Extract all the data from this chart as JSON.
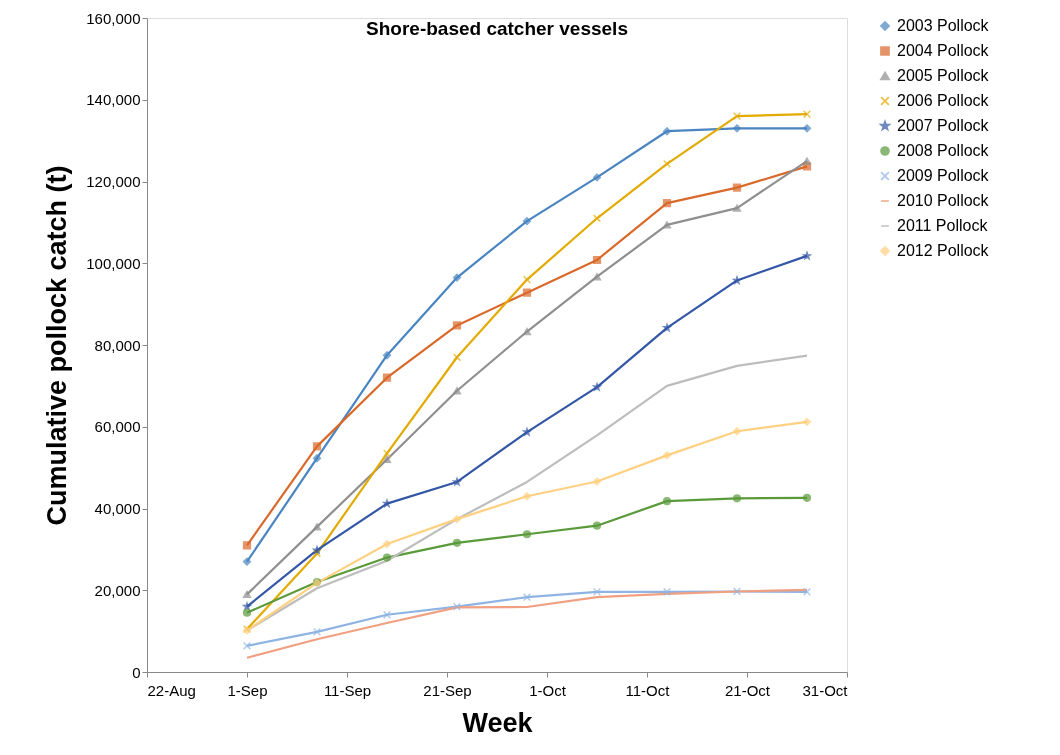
{
  "chart_data": {
    "type": "line",
    "title": "Shore-based catcher vessels",
    "xlabel": "Week",
    "ylabel": "Cumulative pollock catch (t)",
    "x": [
      "--09-01",
      "--09-08",
      "--09-15",
      "--09-22",
      "--09-29",
      "--10-06",
      "--10-13",
      "--10-20",
      "--10-27"
    ],
    "xlim": [
      "--08-22",
      "--10-31"
    ],
    "xticks": [
      {
        "value": "--08-22",
        "label": "22-Aug"
      },
      {
        "value": "--09-01",
        "label": "1-Sep"
      },
      {
        "value": "--09-11",
        "label": "11-Sep"
      },
      {
        "value": "--09-21",
        "label": "21-Sep"
      },
      {
        "value": "--10-01",
        "label": "1-Oct"
      },
      {
        "value": "--10-11",
        "label": "11-Oct"
      },
      {
        "value": "--10-21",
        "label": "21-Oct"
      },
      {
        "value": "--10-31",
        "label": "31-Oct"
      }
    ],
    "ylim": [
      0,
      160000
    ],
    "yticks": [
      {
        "value": 0,
        "label": "0"
      },
      {
        "value": 20000,
        "label": "20,000"
      },
      {
        "value": 40000,
        "label": "40,000"
      },
      {
        "value": 60000,
        "label": "60,000"
      },
      {
        "value": 80000,
        "label": "80,000"
      },
      {
        "value": 100000,
        "label": "100,000"
      },
      {
        "value": 120000,
        "label": "120,000"
      },
      {
        "value": 140000,
        "label": "140,000"
      },
      {
        "value": 160000,
        "label": "160,000"
      }
    ],
    "grid": false,
    "legend": "right",
    "series": [
      {
        "name": "2003 Pollock",
        "color": "#4a85c1",
        "marker": "diamond",
        "values": [
          27000,
          52300,
          77500,
          96500,
          110300,
          121000,
          132300,
          133000,
          133000
        ]
      },
      {
        "name": "2004 Pollock",
        "color": "#d9692a",
        "marker": "square",
        "values": [
          31000,
          55200,
          72000,
          84800,
          92800,
          100800,
          114700,
          118500,
          123700
        ]
      },
      {
        "name": "2005 Pollock",
        "color": "#8f8f8f",
        "marker": "triangle",
        "values": [
          19000,
          35500,
          52000,
          68800,
          83300,
          96700,
          109400,
          113500,
          125000
        ]
      },
      {
        "name": "2006 Pollock",
        "color": "#e3aa00",
        "marker": "cross",
        "values": [
          10500,
          29000,
          53500,
          77000,
          96000,
          111000,
          124300,
          136000,
          136500
        ]
      },
      {
        "name": "2007 Pollock",
        "color": "#3357a6",
        "marker": "star",
        "values": [
          16000,
          29800,
          41200,
          46500,
          58700,
          69700,
          84200,
          95800,
          101800
        ]
      },
      {
        "name": "2008 Pollock",
        "color": "#5b9a3b",
        "marker": "circle",
        "values": [
          14500,
          22000,
          28000,
          31600,
          33700,
          35800,
          41800,
          42500,
          42600
        ]
      },
      {
        "name": "2009 Pollock",
        "color": "#8fb4e3",
        "marker": "cross",
        "values": [
          6400,
          9800,
          14000,
          16000,
          18300,
          19600,
          19600,
          19700,
          19600
        ]
      },
      {
        "name": "2010 Pollock",
        "color": "#f0a080",
        "marker": "none",
        "values": [
          3500,
          8000,
          12000,
          15800,
          15900,
          18300,
          19100,
          19700,
          20100
        ]
      },
      {
        "name": "2011 Pollock",
        "color": "#bdbdbd",
        "marker": "none",
        "values": [
          10200,
          20500,
          27200,
          37400,
          46500,
          57900,
          70000,
          74900,
          77400
        ]
      },
      {
        "name": "2012 Pollock",
        "color": "#ffd080",
        "marker": "diamond",
        "values": [
          10200,
          21800,
          31300,
          37400,
          43000,
          46600,
          53000,
          58900,
          61200
        ]
      }
    ]
  }
}
